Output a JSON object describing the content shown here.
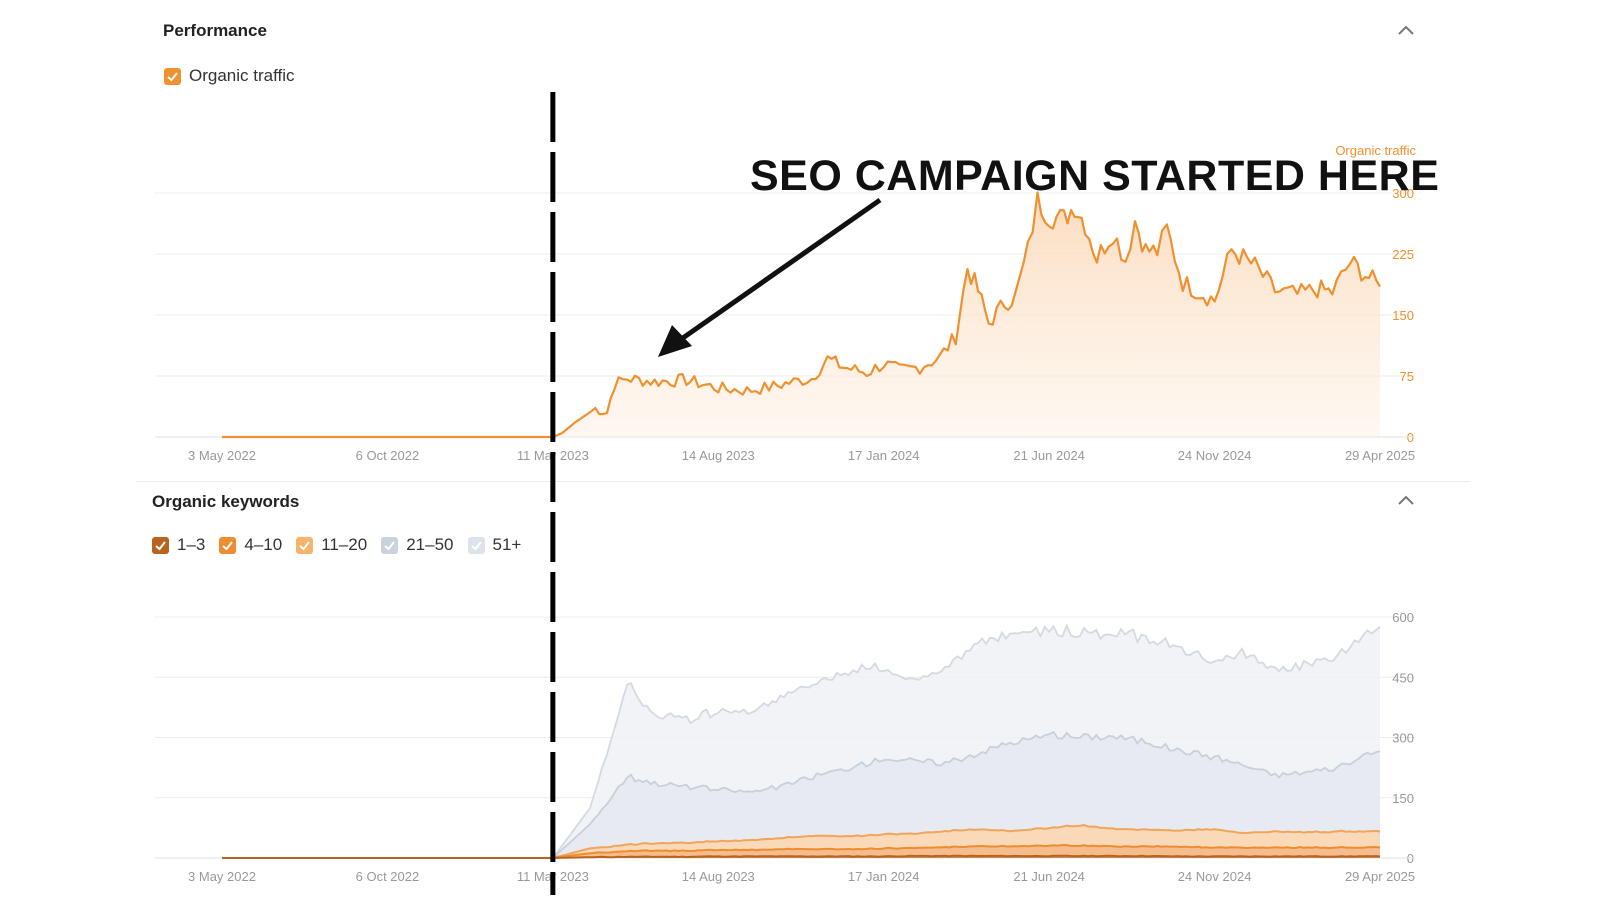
{
  "performance": {
    "title": "Performance",
    "legend": [
      {
        "label": "Organic traffic",
        "color": "#f0902f",
        "checked": true
      }
    ]
  },
  "keywords": {
    "title": "Organic keywords",
    "legend": [
      {
        "label": "1–3",
        "color": "#b8641f",
        "checked": true
      },
      {
        "label": "4–10",
        "color": "#ee8c30",
        "checked": true
      },
      {
        "label": "11–20",
        "color": "#f5b36d",
        "checked": true
      },
      {
        "label": "21–50",
        "color": "#c9d2dd",
        "checked": true
      },
      {
        "label": "51+",
        "color": "#dde3ea",
        "checked": true
      }
    ]
  },
  "annotation": {
    "text": "SEO CAMPAIGN STARTED HERE"
  },
  "icons": {
    "collapse": "chevron-up-icon",
    "checkbox": "check-icon"
  },
  "colors": {
    "traffic_line": "#f0902f",
    "traffic_fill_top": "#fbd9b8",
    "axis_text": "#999999",
    "traffic_axis_text": "#f0902f",
    "grid": "#ececec",
    "annotation": "#111111"
  },
  "chart_data": [
    {
      "type": "area",
      "series": [
        {
          "name": "Organic traffic",
          "color": "#f0902f",
          "x": [
            "2022-05-03",
            "2022-08-01",
            "2022-11-01",
            "2023-01-15",
            "2023-03-11",
            "2023-03-20",
            "2023-04-01",
            "2023-04-20",
            "2023-05-01",
            "2023-05-08",
            "2023-05-20",
            "2023-06-15",
            "2023-07-15",
            "2023-08-14",
            "2023-09-10",
            "2023-10-05",
            "2023-10-20",
            "2023-11-10",
            "2023-11-25",
            "2023-12-10",
            "2024-01-01",
            "2024-01-17",
            "2024-02-01",
            "2024-02-20",
            "2024-03-10",
            "2024-03-25",
            "2024-04-05",
            "2024-04-15",
            "2024-04-25",
            "2024-05-10",
            "2024-05-20",
            "2024-06-01",
            "2024-06-10",
            "2024-06-21",
            "2024-07-05",
            "2024-07-15",
            "2024-07-25",
            "2024-08-05",
            "2024-08-20",
            "2024-09-01",
            "2024-09-10",
            "2024-09-20",
            "2024-10-01",
            "2024-10-10",
            "2024-10-25",
            "2024-11-10",
            "2024-11-24",
            "2024-12-10",
            "2025-01-01",
            "2025-01-20",
            "2025-02-10",
            "2025-03-01",
            "2025-03-15",
            "2025-04-01",
            "2025-04-15",
            "2025-04-29"
          ],
          "values": [
            0,
            0,
            0,
            0,
            0,
            5,
            18,
            35,
            30,
            65,
            72,
            68,
            70,
            60,
            57,
            62,
            67,
            72,
            96,
            86,
            79,
            90,
            82,
            86,
            98,
            124,
            208,
            180,
            140,
            165,
            172,
            230,
            290,
            272,
            268,
            285,
            262,
            220,
            252,
            218,
            266,
            230,
            228,
            255,
            190,
            178,
            168,
            230,
            210,
            180,
            175,
            182,
            178,
            215,
            200,
            185
          ]
        }
      ],
      "xticks": [
        "3 May 2022",
        "6 Oct 2022",
        "11 Mar 2023",
        "14 Aug 2023",
        "17 Jan 2024",
        "21 Jun 2024",
        "24 Nov 2024",
        "29 Apr 2025"
      ],
      "yticks": [
        0,
        75,
        150,
        225,
        300
      ],
      "ylim": [
        0,
        300
      ],
      "ylabel": "Organic traffic",
      "grid": true
    },
    {
      "type": "area",
      "stacked": true,
      "x": [
        "2022-05-03",
        "2022-10-06",
        "2023-03-11",
        "2023-04-15",
        "2023-05-20",
        "2023-06-15",
        "2023-07-15",
        "2023-08-14",
        "2023-09-15",
        "2023-10-15",
        "2023-11-15",
        "2023-12-15",
        "2024-01-17",
        "2024-02-15",
        "2024-03-15",
        "2024-04-15",
        "2024-05-15",
        "2024-06-21",
        "2024-07-20",
        "2024-08-20",
        "2024-09-20",
        "2024-10-20",
        "2024-11-24",
        "2024-12-20",
        "2025-01-20",
        "2025-02-20",
        "2025-03-20",
        "2025-04-29"
      ],
      "series": [
        {
          "name": "1–3",
          "color": "#b8641f",
          "values": [
            0,
            0,
            0,
            2,
            3,
            3,
            3,
            4,
            4,
            4,
            4,
            4,
            4,
            5,
            5,
            5,
            5,
            5,
            5,
            5,
            5,
            4,
            4,
            4,
            4,
            4,
            4,
            4
          ]
        },
        {
          "name": "4–10",
          "color": "#ee8c30",
          "values": [
            0,
            0,
            0,
            10,
            14,
            15,
            15,
            16,
            16,
            18,
            18,
            18,
            20,
            20,
            22,
            24,
            24,
            26,
            26,
            24,
            24,
            24,
            22,
            22,
            22,
            22,
            22,
            22
          ]
        },
        {
          "name": "11–20",
          "color": "#f5b36d",
          "values": [
            0,
            0,
            0,
            12,
            16,
            18,
            20,
            22,
            24,
            28,
            34,
            32,
            36,
            36,
            40,
            42,
            38,
            44,
            50,
            44,
            42,
            40,
            46,
            36,
            40,
            38,
            40,
            40
          ]
        },
        {
          "name": "21–50",
          "color": "#c9d2dd",
          "values": [
            0,
            0,
            0,
            60,
            170,
            150,
            140,
            128,
            120,
            130,
            150,
            170,
            190,
            180,
            170,
            190,
            220,
            230,
            220,
            230,
            220,
            200,
            180,
            170,
            140,
            150,
            160,
            200
          ]
        },
        {
          "name": "51+",
          "color": "#dde3ea",
          "values": [
            0,
            0,
            0,
            40,
            230,
            170,
            170,
            190,
            200,
            220,
            230,
            240,
            230,
            200,
            230,
            280,
            270,
            260,
            260,
            260,
            260,
            260,
            230,
            280,
            260,
            270,
            280,
            310
          ]
        }
      ],
      "xticks": [
        "3 May 2022",
        "6 Oct 2022",
        "11 Mar 2023",
        "14 Aug 2023",
        "17 Jan 2024",
        "21 Jun 2024",
        "24 Nov 2024",
        "29 Apr 2025"
      ],
      "yticks": [
        0,
        150,
        300,
        450,
        600
      ],
      "ylim": [
        0,
        600
      ],
      "grid": true
    }
  ]
}
